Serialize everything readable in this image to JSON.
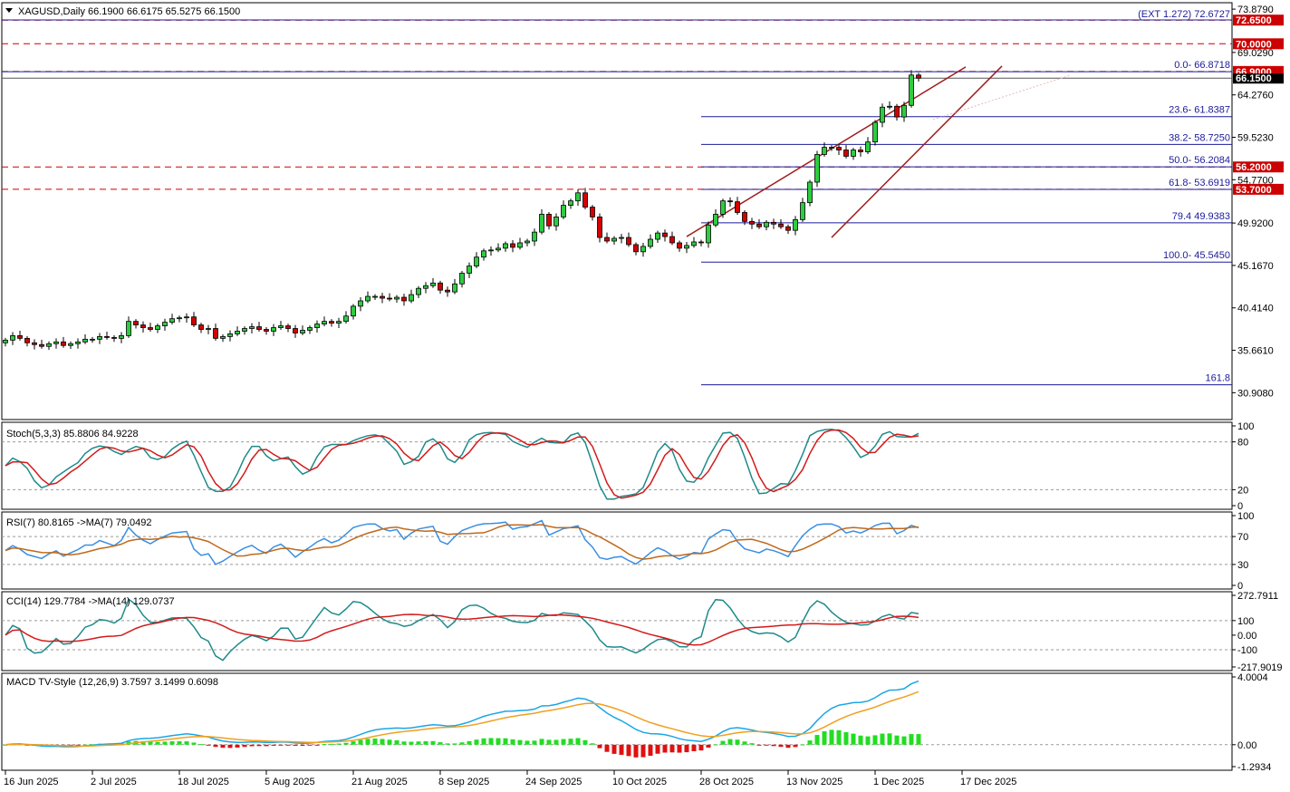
{
  "main_title": "XAGUSD,Daily  66.1900 66.6175 65.5275 66.1500",
  "chart_data": {
    "type": "candlestick",
    "symbol": "XAGUSD",
    "timeframe": "Daily",
    "ohlc_header": [
      66.19,
      66.6175,
      65.5275,
      66.15
    ],
    "last_price": "66.1500",
    "price_axis_ticks": [
      "73.8790",
      "69.0290",
      "64.2760",
      "59.5230",
      "54.7700",
      "49.9200",
      "45.1670",
      "40.4140",
      "35.6610",
      "30.9080"
    ],
    "price_range": [
      27.9,
      74.6
    ],
    "x_ticks": [
      "16 Jun 2025",
      "2 Jul 2025",
      "18 Jul 2025",
      "5 Aug 2025",
      "21 Aug 2025",
      "8 Sep 2025",
      "24 Sep 2025",
      "10 Oct 2025",
      "28 Oct 2025",
      "13 Nov 2025",
      "1 Dec 2025",
      "17 Dec 2025"
    ],
    "close_series": [
      36.8,
      37.3,
      37.0,
      36.5,
      36.3,
      36.1,
      36.4,
      36.6,
      36.2,
      36.4,
      36.6,
      36.9,
      36.9,
      37.2,
      37.1,
      37.0,
      37.3,
      38.9,
      38.5,
      38.2,
      38.0,
      38.4,
      38.8,
      39.2,
      39.3,
      39.4,
      38.5,
      38.0,
      38.1,
      37.0,
      37.2,
      37.5,
      37.8,
      38.1,
      38.3,
      38.0,
      37.8,
      38.2,
      38.4,
      38.1,
      37.6,
      37.9,
      38.2,
      38.6,
      38.9,
      38.7,
      38.9,
      39.5,
      40.6,
      41.2,
      41.7,
      41.7,
      41.5,
      41.4,
      41.6,
      41.2,
      41.9,
      42.6,
      42.9,
      43.2,
      42.4,
      42.2,
      43.1,
      44.3,
      45.1,
      46.1,
      46.8,
      46.9,
      47.1,
      47.6,
      47.2,
      47.7,
      47.9,
      48.9,
      50.9,
      49.6,
      50.6,
      51.9,
      52.4,
      53.3,
      51.7,
      50.6,
      48.3,
      47.9,
      48.2,
      48.3,
      47.5,
      46.7,
      47.3,
      48.1,
      48.8,
      48.4,
      47.7,
      47.1,
      47.4,
      47.8,
      47.7,
      49.7,
      50.9,
      52.4,
      52.3,
      51.1,
      50.1,
      49.8,
      49.5,
      50.0,
      49.8,
      49.5,
      49.1,
      50.3,
      52.2,
      54.5,
      57.6,
      58.4,
      58.4,
      58.1,
      57.4,
      58.1,
      57.9,
      59.0,
      61.2,
      62.9,
      63.0,
      61.8,
      63.1,
      66.5,
      66.15
    ],
    "overlays": {
      "fibonacci_levels": [
        {
          "label": "0.0- 66.8718",
          "price": 66.8718
        },
        {
          "label": "23.6- 61.8387",
          "price": 61.8387
        },
        {
          "label": "38.2- 58.7250",
          "price": 58.725
        },
        {
          "label": "50.0- 56.2084",
          "price": 56.2084
        },
        {
          "label": "61.8- 53.6919",
          "price": 53.6919
        },
        {
          "label": "79.4 49.9383",
          "price": 49.9383
        },
        {
          "label": "100.0- 45.5450",
          "price": 45.545
        },
        {
          "label": "161.8",
          "price": 31.8
        }
      ],
      "extension": {
        "label": "(EXT 1.272)  72.6727",
        "price": 72.6727
      },
      "horizontal_levels": [
        {
          "label": "72.6500",
          "price": 72.65
        },
        {
          "label": "70.0000",
          "price": 70.0
        },
        {
          "label": "66.9000",
          "price": 66.9
        },
        {
          "label": "56.2000",
          "price": 56.2
        },
        {
          "label": "53.7000",
          "price": 53.7
        }
      ]
    },
    "indicators": {
      "stoch": {
        "title": "Stoch(5,3,3) 85.8806 84.9228",
        "ticks": [
          "100",
          "80",
          "20",
          "0"
        ],
        "range": [
          0,
          100
        ],
        "levels": [
          80,
          20
        ]
      },
      "rsi": {
        "title": "RSI(7) 80.8165  ->MA(7) 79.0492",
        "ticks": [
          "100",
          "70",
          "30",
          "0"
        ],
        "range": [
          0,
          100
        ],
        "levels": [
          70,
          30
        ]
      },
      "cci": {
        "title": "CCI(14) 129.7784  ->MA(14) 129.0737",
        "ticks": [
          "272.7911",
          "100",
          "0.00",
          "-100",
          "-217.9019"
        ],
        "range": [
          -217.9019,
          272.7911
        ],
        "levels": [
          100,
          -100
        ]
      },
      "macd": {
        "title": "MACD TV-Style (12,26,9) 3.7597 3.1499 0.6098",
        "ticks": [
          "4.0004",
          "0.00",
          "-1.2934"
        ],
        "range": [
          -1.2934,
          4.0004
        ],
        "levels": [
          0
        ]
      }
    }
  },
  "colors": {
    "bull_body": "#2ecc40",
    "bear_body": "#d40000",
    "candle_outline": "#000000",
    "fib_line": "#1b1b9a",
    "level_line": "#cc0000",
    "channel": "#a01c1c",
    "indicator_fast": "#1f8a8a",
    "indicator_slow": "#d41a1a",
    "rsi_line": "#3a8fe0",
    "rsi_ma": "#c0691a",
    "macd_line": "#1aa6e6",
    "signal_line": "#f0a020",
    "hist_pos": "#22dd22",
    "hist_neg": "#e01010"
  }
}
